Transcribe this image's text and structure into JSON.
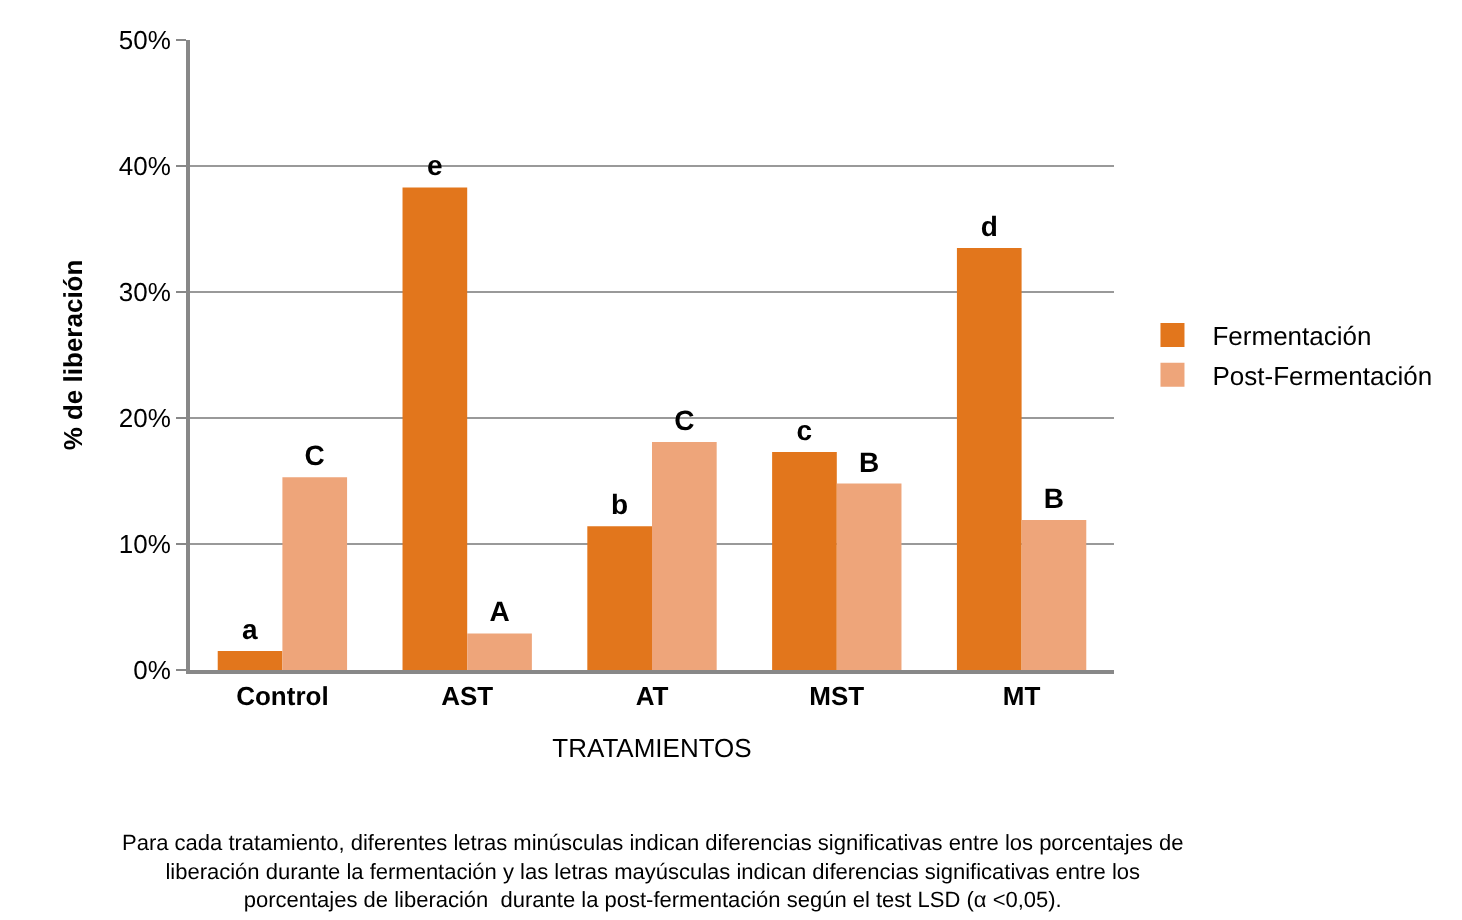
{
  "chart_data": {
    "type": "bar",
    "categories": [
      "Control",
      "AST",
      "AT",
      "MST",
      "MT"
    ],
    "xlabel": "TRATAMIENTOS",
    "ylabel": "% de liberación",
    "series": [
      {
        "name": "Fermentación",
        "color": "#e2761c",
        "values": [
          1.5,
          38.3,
          11.4,
          17.3,
          33.5
        ],
        "value_labels": [
          "a",
          "e",
          "b",
          "c",
          "d"
        ]
      },
      {
        "name": "Post-Fermentación",
        "color": "#eea57a",
        "values": [
          15.3,
          2.9,
          18.1,
          14.8,
          11.9
        ],
        "value_labels": [
          "C",
          "A",
          "C",
          "B",
          "B"
        ]
      }
    ],
    "ylim": [
      0,
      50
    ],
    "yticks": [
      {
        "value": 0,
        "label": "0%"
      },
      {
        "value": 10,
        "label": "10%"
      },
      {
        "value": 20,
        "label": "20%"
      },
      {
        "value": 30,
        "label": "30%"
      },
      {
        "value": 40,
        "label": "40%"
      },
      {
        "value": 50,
        "label": "50%"
      }
    ],
    "grid": "y",
    "legend": "right",
    "annotations": [
      "Para cada tratamiento, diferentes letras minúsculas indican diferencias significativas entre los porcentajes de\nliberación durante la fermentación y las letras mayúsculas indican diferencias significativas entre los\nporcentajes de liberación  durante la post-fermentación según el test LSD (α <0,05)."
    ]
  }
}
